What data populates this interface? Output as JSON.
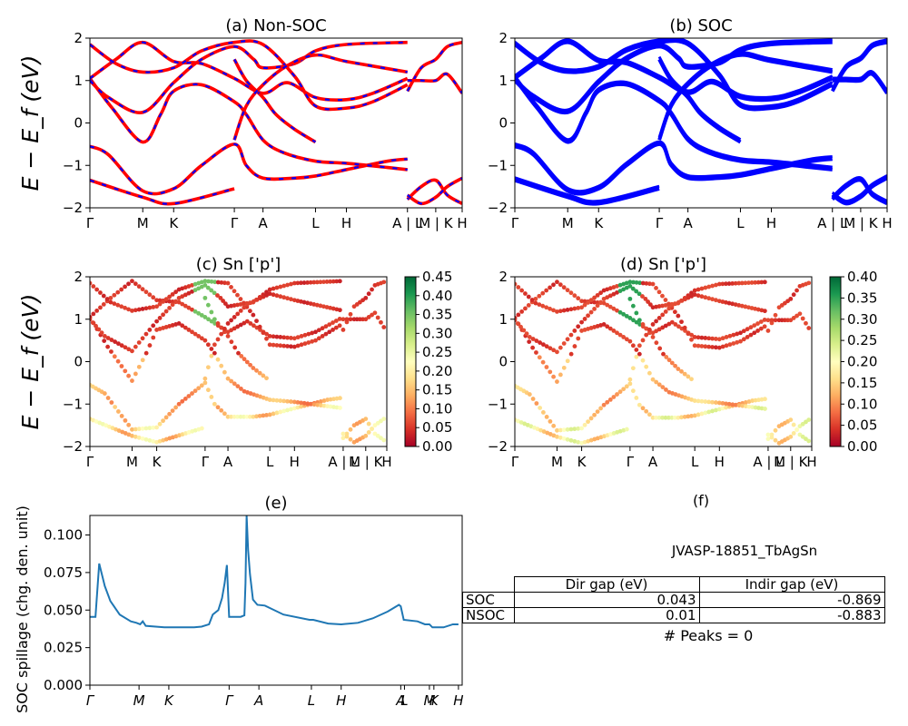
{
  "chart_data": [
    {
      "type": "line",
      "panel": "a",
      "title": "(a) Non-SOC",
      "ylabel": "E − E_f (eV)",
      "ylim": [
        -2,
        2
      ],
      "yticks": [
        -2,
        -1,
        0,
        1,
        2
      ],
      "x_ticks": [
        {
          "label": "Γ",
          "pos": 0.0
        },
        {
          "label": "M",
          "pos": 0.142
        },
        {
          "label": "K",
          "pos": 0.225
        },
        {
          "label": "Γ",
          "pos": 0.388
        },
        {
          "label": "A",
          "pos": 0.465
        },
        {
          "label": "L",
          "pos": 0.606
        },
        {
          "label": "H",
          "pos": 0.689
        },
        {
          "label": "A | L",
          "pos": 0.853
        },
        {
          "label": "M | K",
          "pos": 0.929
        },
        {
          "label": "H",
          "pos": 1.0
        }
      ],
      "series": [
        {
          "color": "#ff0000",
          "dash_color": "#0000ff",
          "values": [
            [
              0.0,
              -1.35
            ],
            [
              0.142,
              -1.75
            ],
            [
              0.225,
              -1.9
            ],
            [
              0.388,
              -1.55
            ]
          ]
        },
        {
          "values": [
            [
              0.0,
              -0.55
            ],
            [
              0.05,
              -0.75
            ],
            [
              0.142,
              -1.6
            ],
            [
              0.225,
              -1.55
            ],
            [
              0.3,
              -1.0
            ],
            [
              0.388,
              -0.5
            ],
            [
              0.42,
              -1.0
            ],
            [
              0.465,
              -1.3
            ],
            [
              0.55,
              -1.3
            ],
            [
              0.606,
              -1.25
            ],
            [
              0.689,
              -1.1
            ],
            [
              0.8,
              -0.9
            ],
            [
              0.853,
              -0.85
            ]
          ]
        },
        {
          "values": [
            [
              0.0,
              1.05
            ],
            [
              0.06,
              0.35
            ],
            [
              0.142,
              -0.45
            ],
            [
              0.19,
              0.2
            ],
            [
              0.225,
              0.75
            ],
            [
              0.3,
              0.9
            ],
            [
              0.388,
              0.5
            ],
            [
              0.42,
              0.2
            ],
            [
              0.465,
              -0.4
            ],
            [
              0.52,
              -0.7
            ],
            [
              0.606,
              -0.9
            ],
            [
              0.689,
              -0.95
            ],
            [
              0.8,
              -1.05
            ],
            [
              0.853,
              -1.1
            ]
          ]
        },
        {
          "values": [
            [
              0.0,
              1.05
            ],
            [
              0.07,
              1.5
            ],
            [
              0.142,
              1.9
            ],
            [
              0.225,
              1.45
            ],
            [
              0.3,
              1.4
            ],
            [
              0.388,
              1.05
            ],
            [
              0.465,
              0.7
            ],
            [
              0.53,
              0.95
            ],
            [
              0.606,
              0.6
            ],
            [
              0.689,
              0.55
            ],
            [
              0.76,
              0.7
            ],
            [
              0.853,
              1.05
            ]
          ]
        },
        {
          "values": [
            [
              0.0,
              1.0
            ],
            [
              0.05,
              0.6
            ],
            [
              0.142,
              0.25
            ],
            [
              0.225,
              0.95
            ],
            [
              0.3,
              1.5
            ],
            [
              0.388,
              1.8
            ],
            [
              0.44,
              1.5
            ],
            [
              0.465,
              1.3
            ],
            [
              0.55,
              1.4
            ],
            [
              0.606,
              1.7
            ],
            [
              0.689,
              1.85
            ],
            [
              0.853,
              1.9
            ]
          ]
        },
        {
          "values": [
            [
              0.0,
              1.85
            ],
            [
              0.07,
              1.4
            ],
            [
              0.142,
              1.2
            ],
            [
              0.225,
              1.3
            ],
            [
              0.3,
              1.7
            ],
            [
              0.388,
              1.9
            ],
            [
              0.465,
              1.85
            ],
            [
              0.55,
              1.1
            ],
            [
              0.606,
              0.4
            ],
            [
              0.689,
              0.35
            ],
            [
              0.76,
              0.5
            ],
            [
              0.853,
              0.9
            ]
          ]
        },
        {
          "values": [
            [
              0.388,
              1.5
            ],
            [
              0.42,
              1.0
            ],
            [
              0.465,
              0.6
            ],
            [
              0.5,
              0.2
            ],
            [
              0.55,
              -0.15
            ],
            [
              0.606,
              -0.45
            ]
          ]
        },
        {
          "values": [
            [
              0.388,
              -0.4
            ],
            [
              0.42,
              0.4
            ],
            [
              0.465,
              0.9
            ],
            [
              0.53,
              1.35
            ],
            [
              0.606,
              1.6
            ],
            [
              0.689,
              1.45
            ],
            [
              0.853,
              1.2
            ]
          ]
        },
        {
          "values": [
            [
              0.853,
              0.75
            ],
            [
              0.89,
              1.3
            ],
            [
              0.929,
              1.5
            ],
            [
              0.96,
              1.8
            ],
            [
              1.0,
              1.9
            ]
          ]
        },
        {
          "values": [
            [
              0.853,
              1.0
            ],
            [
              0.89,
              1.0
            ],
            [
              0.929,
              1.0
            ],
            [
              0.96,
              1.15
            ],
            [
              1.0,
              0.7
            ]
          ]
        },
        {
          "values": [
            [
              0.853,
              -1.8
            ],
            [
              0.89,
              -1.5
            ],
            [
              0.929,
              -1.35
            ],
            [
              0.96,
              -1.7
            ],
            [
              1.0,
              -1.9
            ]
          ]
        },
        {
          "values": [
            [
              0.853,
              -1.7
            ],
            [
              0.89,
              -1.9
            ],
            [
              0.929,
              -1.75
            ],
            [
              0.96,
              -1.5
            ],
            [
              1.0,
              -1.3
            ]
          ]
        }
      ]
    },
    {
      "type": "line",
      "panel": "b",
      "title": "(b) SOC",
      "ylim": [
        -2,
        2
      ],
      "yticks": [
        -2,
        -1,
        0,
        1,
        2
      ],
      "x_ticks": [
        {
          "label": "Γ",
          "pos": 0.0
        },
        {
          "label": "M",
          "pos": 0.142
        },
        {
          "label": "K",
          "pos": 0.225
        },
        {
          "label": "Γ",
          "pos": 0.388
        },
        {
          "label": "A",
          "pos": 0.465
        },
        {
          "label": "L",
          "pos": 0.606
        },
        {
          "label": "H",
          "pos": 0.689
        },
        {
          "label": "A | L",
          "pos": 0.853
        },
        {
          "label": "M | K",
          "pos": 0.929
        },
        {
          "label": "H",
          "pos": 1.0
        }
      ],
      "color": "#0000ff"
    },
    {
      "type": "scatter",
      "panel": "c",
      "title": "(c)  Sn ['p']",
      "ylabel": "E − E_f (eV)",
      "ylim": [
        -2,
        2
      ],
      "yticks": [
        -2,
        -1,
        0,
        1,
        2
      ],
      "colorbar": {
        "min": 0.0,
        "max": 0.45,
        "ticks": [
          "0.00",
          "0.05",
          "0.10",
          "0.15",
          "0.20",
          "0.25",
          "0.30",
          "0.35",
          "0.40",
          "0.45"
        ],
        "colormap": "RdYlGn"
      },
      "x_ticks": [
        {
          "label": "Γ",
          "pos": 0.0
        },
        {
          "label": "M",
          "pos": 0.142
        },
        {
          "label": "K",
          "pos": 0.225
        },
        {
          "label": "Γ",
          "pos": 0.388
        },
        {
          "label": "A",
          "pos": 0.465
        },
        {
          "label": "L",
          "pos": 0.606
        },
        {
          "label": "H",
          "pos": 0.689
        },
        {
          "label": "A | L",
          "pos": 0.853
        },
        {
          "label": "M | K",
          "pos": 0.929
        },
        {
          "label": "H",
          "pos": 1.0
        }
      ]
    },
    {
      "type": "scatter",
      "panel": "d",
      "title": "(d) Sn ['p']",
      "ylim": [
        -2,
        2
      ],
      "yticks": [
        -2,
        -1,
        0,
        1,
        2
      ],
      "colorbar": {
        "min": 0.0,
        "max": 0.4,
        "ticks": [
          "0.00",
          "0.05",
          "0.10",
          "0.15",
          "0.20",
          "0.25",
          "0.30",
          "0.35",
          "0.40"
        ],
        "colormap": "RdYlGn"
      },
      "x_ticks": [
        {
          "label": "Γ",
          "pos": 0.0
        },
        {
          "label": "M",
          "pos": 0.142
        },
        {
          "label": "K",
          "pos": 0.225
        },
        {
          "label": "Γ",
          "pos": 0.388
        },
        {
          "label": "A",
          "pos": 0.465
        },
        {
          "label": "L",
          "pos": 0.606
        },
        {
          "label": "H",
          "pos": 0.689
        },
        {
          "label": "A | L",
          "pos": 0.853
        },
        {
          "label": "M | K",
          "pos": 0.929
        },
        {
          "label": "H",
          "pos": 1.0
        }
      ]
    },
    {
      "type": "line",
      "panel": "e",
      "title": "(e)",
      "ylabel": "SOC spillage (chg. den. unit)",
      "ylim": [
        0.0,
        0.113
      ],
      "yticks": [
        "0.000",
        "0.025",
        "0.050",
        "0.075",
        "0.100"
      ],
      "ytick_values": [
        0.0,
        0.025,
        0.05,
        0.075,
        0.1
      ],
      "x_ticks": [
        {
          "label": "Γ",
          "pos": 0.0
        },
        {
          "label": "M",
          "pos": 0.132
        },
        {
          "label": "K",
          "pos": 0.212
        },
        {
          "label": "Γ",
          "pos": 0.374
        },
        {
          "label": "A",
          "pos": 0.454
        },
        {
          "label": "L",
          "pos": 0.595
        },
        {
          "label": "H",
          "pos": 0.675
        },
        {
          "label": "A",
          "pos": 0.835
        },
        {
          "label": "L",
          "pos": 0.845
        },
        {
          "label": "M",
          "pos": 0.912
        },
        {
          "label": "K",
          "pos": 0.924
        },
        {
          "label": "H",
          "pos": 0.99
        }
      ],
      "series": [
        {
          "name": "",
          "color": "#1f77b4",
          "values": [
            [
              0.0,
              0.0455
            ],
            [
              0.015,
              0.0455
            ],
            [
              0.025,
              0.081
            ],
            [
              0.04,
              0.066
            ],
            [
              0.055,
              0.056
            ],
            [
              0.08,
              0.047
            ],
            [
              0.11,
              0.0425
            ],
            [
              0.125,
              0.0415
            ],
            [
              0.135,
              0.0405
            ],
            [
              0.142,
              0.0425
            ],
            [
              0.15,
              0.0395
            ],
            [
              0.2,
              0.0385
            ],
            [
              0.28,
              0.0385
            ],
            [
              0.3,
              0.039
            ],
            [
              0.32,
              0.0405
            ],
            [
              0.33,
              0.047
            ],
            [
              0.345,
              0.05
            ],
            [
              0.355,
              0.058
            ],
            [
              0.362,
              0.068
            ],
            [
              0.368,
              0.08
            ],
            [
              0.374,
              0.0455
            ],
            [
              0.39,
              0.0455
            ],
            [
              0.405,
              0.0455
            ],
            [
              0.415,
              0.0465
            ],
            [
              0.418,
              0.068
            ],
            [
              0.421,
              0.113
            ],
            [
              0.425,
              0.09
            ],
            [
              0.43,
              0.074
            ],
            [
              0.438,
              0.057
            ],
            [
              0.45,
              0.0535
            ],
            [
              0.47,
              0.053
            ],
            [
              0.52,
              0.047
            ],
            [
              0.59,
              0.0435
            ],
            [
              0.6,
              0.0435
            ],
            [
              0.64,
              0.041
            ],
            [
              0.675,
              0.0405
            ],
            [
              0.72,
              0.0415
            ],
            [
              0.76,
              0.0445
            ],
            [
              0.8,
              0.049
            ],
            [
              0.83,
              0.0535
            ],
            [
              0.835,
              0.0525
            ],
            [
              0.843,
              0.0435
            ],
            [
              0.88,
              0.0425
            ],
            [
              0.9,
              0.0405
            ],
            [
              0.912,
              0.0405
            ],
            [
              0.92,
              0.0385
            ],
            [
              0.95,
              0.0385
            ],
            [
              0.975,
              0.0405
            ],
            [
              0.99,
              0.0405
            ]
          ]
        }
      ]
    }
  ],
  "panel_f": {
    "title": "(f)",
    "subtitle": "JVASP-18851_TbAgSn",
    "table": {
      "col_headers": [
        "Dir gap (eV)",
        "Indir gap (eV)"
      ],
      "rows": [
        {
          "label": "SOC",
          "dir": "0.043",
          "indir": "-0.869"
        },
        {
          "label": "NSOC",
          "dir": "0.01",
          "indir": "-0.883"
        }
      ]
    },
    "peaks": "# Peaks = 0"
  }
}
